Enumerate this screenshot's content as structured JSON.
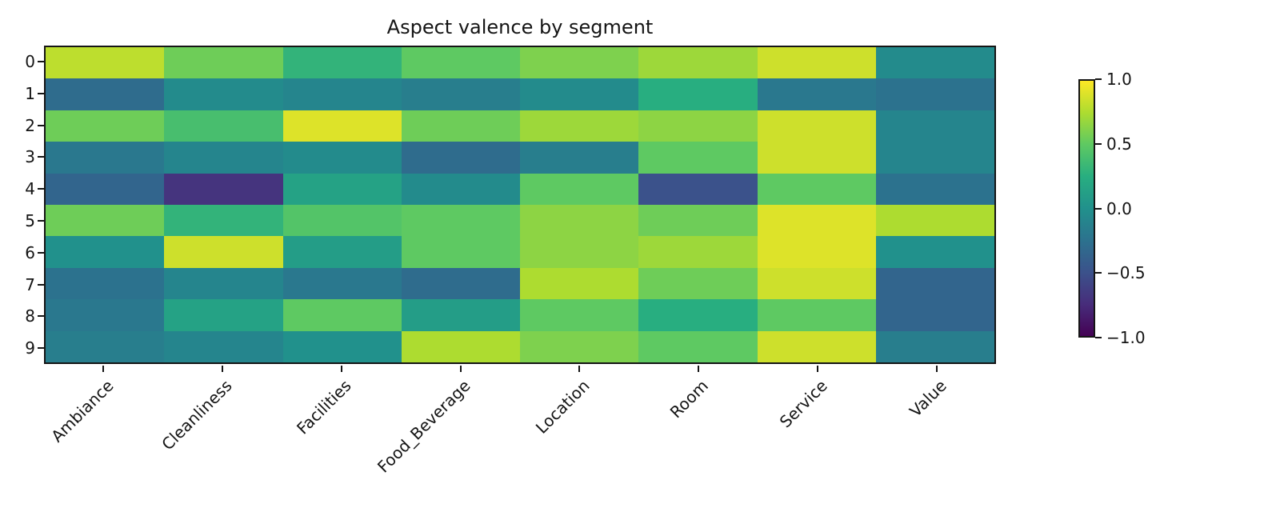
{
  "title": "Aspect valence by segment",
  "chart_data": {
    "type": "heatmap",
    "title": "Aspect valence by segment",
    "x_categories": [
      "Ambiance",
      "Cleanliness",
      "Facilities",
      "Food_Beverage",
      "Location",
      "Room",
      "Service",
      "Value"
    ],
    "y_categories": [
      "0",
      "1",
      "2",
      "3",
      "4",
      "5",
      "6",
      "7",
      "8",
      "9"
    ],
    "values": [
      [
        0.8,
        0.55,
        0.3,
        0.5,
        0.6,
        0.7,
        0.85,
        -0.05
      ],
      [
        -0.3,
        -0.05,
        -0.1,
        -0.15,
        -0.05,
        0.25,
        -0.2,
        -0.25
      ],
      [
        0.55,
        0.4,
        0.9,
        0.55,
        0.7,
        0.65,
        0.85,
        -0.1
      ],
      [
        -0.2,
        -0.1,
        -0.05,
        -0.3,
        -0.15,
        0.5,
        0.85,
        -0.1
      ],
      [
        -0.35,
        -0.7,
        0.15,
        -0.05,
        0.5,
        -0.5,
        0.5,
        -0.25
      ],
      [
        0.55,
        0.3,
        0.45,
        0.5,
        0.65,
        0.55,
        0.9,
        0.75
      ],
      [
        0.0,
        0.85,
        0.1,
        0.5,
        0.65,
        0.7,
        0.9,
        0.0
      ],
      [
        -0.25,
        -0.1,
        -0.2,
        -0.3,
        0.75,
        0.55,
        0.85,
        -0.35
      ],
      [
        -0.2,
        0.15,
        0.5,
        0.1,
        0.5,
        0.25,
        0.5,
        -0.35
      ],
      [
        -0.15,
        -0.1,
        0.0,
        0.75,
        0.6,
        0.5,
        0.85,
        -0.15
      ]
    ],
    "vmin": -1.0,
    "vmax": 1.0,
    "colormap": "viridis",
    "colorbar_ticks": [
      "1.0",
      "0.5",
      "0.0",
      "−0.5",
      "−1.0"
    ],
    "legend_position": "right",
    "grid": false
  },
  "colors": {
    "viridis_stops": [
      [
        68,
        1,
        84
      ],
      [
        71,
        45,
        123
      ],
      [
        59,
        82,
        139
      ],
      [
        44,
        114,
        142
      ],
      [
        33,
        145,
        140
      ],
      [
        40,
        174,
        128
      ],
      [
        94,
        201,
        98
      ],
      [
        173,
        220,
        48
      ],
      [
        253,
        231,
        37
      ]
    ],
    "axis_color": "#151515",
    "background": "#ffffff"
  }
}
